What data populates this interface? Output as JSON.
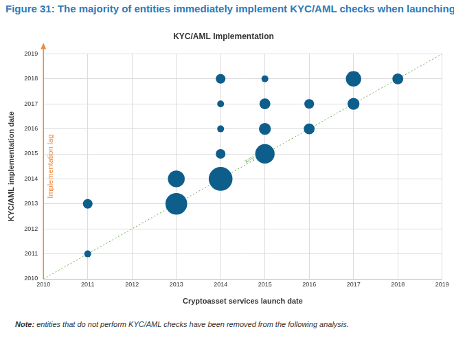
{
  "figure": {
    "title": "Figure 31: The majority of entities immediately implement KYC/AML checks when launching",
    "note_label": "Note:",
    "note": "entities that do not perform KYC/AML checks have been removed from the following analysis."
  },
  "chart_data": {
    "type": "bubble",
    "title": "KYC/AML Implementation",
    "x_label": "Cryptoasset services launch date",
    "y_label": "KYC/AML implementation date",
    "annotations": [
      "Implementation lag"
    ],
    "x": [
      2011,
      2011,
      2013,
      2013,
      2014,
      2014,
      2014,
      2014,
      2014,
      2015,
      2015,
      2015,
      2015,
      2016,
      2016,
      2017,
      2017,
      2018
    ],
    "values": [
      2011,
      2013,
      2013,
      2014,
      2014,
      2015,
      2016,
      2017,
      2018,
      2015,
      2016,
      2017,
      2018,
      2016,
      2017,
      2017,
      2018,
      2018
    ],
    "sizes": [
      1,
      2,
      10,
      6,
      12,
      2,
      1,
      1,
      2,
      8,
      3,
      2.5,
      1,
      2.5,
      2,
      3,
      5,
      2.5
    ],
    "color": "#0e5e8c",
    "reference_line": {
      "name": "x=y",
      "x": [
        2010,
        2019
      ],
      "values": [
        2010,
        2019
      ],
      "color": "#6aa84f",
      "line_style": "dotted"
    },
    "xlim": [
      2010,
      2019
    ],
    "xticks": [
      2010,
      2011,
      2012,
      2013,
      2014,
      2015,
      2016,
      2017,
      2018,
      2019
    ],
    "ylim": [
      2010,
      2019
    ],
    "yticks": [
      2010,
      2011,
      2012,
      2013,
      2014,
      2015,
      2016,
      2017,
      2018,
      2019
    ],
    "grid": true
  }
}
